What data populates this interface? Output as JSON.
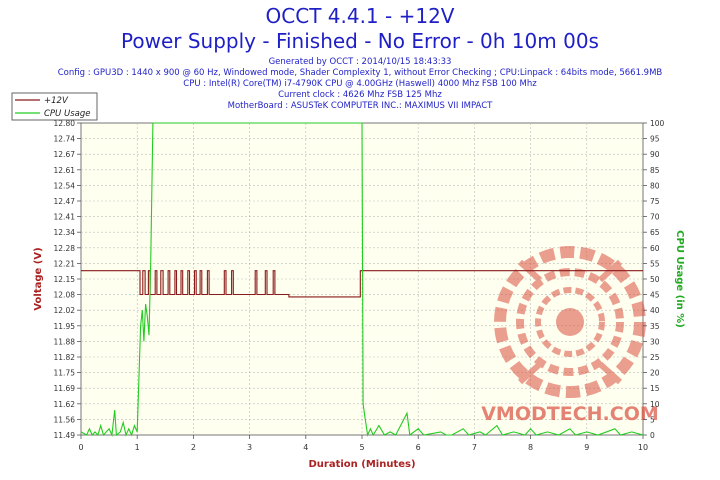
{
  "header": {
    "title": "OCCT 4.4.1 - +12V",
    "subtitle": "Power Supply - Finished - No Error - 0h 10m 00s",
    "info_lines": [
      "Generated by OCCT : 2014/10/15 18:43:33",
      "Config : GPU3D : 1440 x 900 @ 60 Hz, Windowed mode, Shader Complexity 1, without Error Checking ; CPU:Linpack : 64bits mode, 5661.9MB",
      "CPU : Intel(R) Core(TM) i7-4790K CPU @ 4.00GHz (Haswell) 4000 Mhz FSB 100 Mhz",
      "Current clock : 4626 Mhz FSB 125 Mhz",
      "MotherBoard : ASUSTeK COMPUTER INC.: MAXIMUS VII IMPACT"
    ]
  },
  "watermark": "VMODTECH.COM",
  "chart_data": {
    "type": "line",
    "xlabel": "Duration (Minutes)",
    "ylabel_left": "Voltage (V)",
    "ylabel_right": "CPU Usage (in %)",
    "xlim": [
      0,
      10
    ],
    "ylim_left": [
      11.49,
      12.8
    ],
    "ylim_right": [
      0,
      100
    ],
    "x_ticks": [
      "0",
      "1",
      "2",
      "3",
      "4",
      "5",
      "6",
      "7",
      "8",
      "9",
      "10"
    ],
    "y_ticks_left": [
      "11.49",
      "11.56",
      "11.62",
      "11.69",
      "11.75",
      "11.82",
      "11.88",
      "11.95",
      "12.02",
      "12.08",
      "12.15",
      "12.21",
      "12.28",
      "12.34",
      "12.41",
      "12.47",
      "12.54",
      "12.61",
      "12.67",
      "12.74",
      "12.80"
    ],
    "y_ticks_right": [
      "0",
      "5",
      "10",
      "15",
      "20",
      "25",
      "30",
      "35",
      "40",
      "45",
      "50",
      "55",
      "60",
      "65",
      "70",
      "75",
      "80",
      "85",
      "90",
      "95",
      "100"
    ],
    "grid": true,
    "legend_position": "top-left",
    "colors": {
      "voltage": "#8b1a1a",
      "cpu": "#22cc22",
      "axis_label": "#aa2222",
      "right_label": "#22aa22",
      "title": "#1f1fc6",
      "plot_bg": "#fffff0"
    },
    "series": [
      {
        "name": "+12V",
        "axis": "left",
        "points": [
          [
            0,
            12.18
          ],
          [
            1.05,
            12.18
          ],
          [
            1.05,
            12.08
          ],
          [
            1.1,
            12.08
          ],
          [
            1.1,
            12.18
          ],
          [
            1.14,
            12.18
          ],
          [
            1.14,
            12.08
          ],
          [
            1.2,
            12.08
          ],
          [
            1.2,
            12.18
          ],
          [
            1.23,
            12.18
          ],
          [
            1.23,
            12.08
          ],
          [
            1.32,
            12.08
          ],
          [
            1.32,
            12.18
          ],
          [
            1.35,
            12.18
          ],
          [
            1.35,
            12.08
          ],
          [
            1.42,
            12.08
          ],
          [
            1.42,
            12.18
          ],
          [
            1.46,
            12.18
          ],
          [
            1.46,
            12.08
          ],
          [
            1.55,
            12.08
          ],
          [
            1.55,
            12.18
          ],
          [
            1.58,
            12.18
          ],
          [
            1.58,
            12.08
          ],
          [
            1.67,
            12.08
          ],
          [
            1.67,
            12.18
          ],
          [
            1.7,
            12.18
          ],
          [
            1.7,
            12.08
          ],
          [
            1.78,
            12.08
          ],
          [
            1.78,
            12.18
          ],
          [
            1.81,
            12.18
          ],
          [
            1.81,
            12.08
          ],
          [
            1.9,
            12.08
          ],
          [
            1.9,
            12.18
          ],
          [
            1.93,
            12.18
          ],
          [
            1.93,
            12.08
          ],
          [
            2.02,
            12.08
          ],
          [
            2.02,
            12.18
          ],
          [
            2.05,
            12.18
          ],
          [
            2.05,
            12.08
          ],
          [
            2.12,
            12.08
          ],
          [
            2.12,
            12.18
          ],
          [
            2.15,
            12.18
          ],
          [
            2.15,
            12.08
          ],
          [
            2.25,
            12.08
          ],
          [
            2.25,
            12.18
          ],
          [
            2.28,
            12.18
          ],
          [
            2.28,
            12.08
          ],
          [
            2.55,
            12.08
          ],
          [
            2.55,
            12.18
          ],
          [
            2.58,
            12.18
          ],
          [
            2.58,
            12.08
          ],
          [
            2.68,
            12.08
          ],
          [
            2.68,
            12.18
          ],
          [
            2.71,
            12.18
          ],
          [
            2.71,
            12.08
          ],
          [
            3.1,
            12.08
          ],
          [
            3.1,
            12.18
          ],
          [
            3.13,
            12.18
          ],
          [
            3.13,
            12.08
          ],
          [
            3.28,
            12.08
          ],
          [
            3.28,
            12.18
          ],
          [
            3.31,
            12.18
          ],
          [
            3.31,
            12.08
          ],
          [
            3.42,
            12.08
          ],
          [
            3.42,
            12.18
          ],
          [
            3.45,
            12.18
          ],
          [
            3.45,
            12.08
          ],
          [
            3.7,
            12.08
          ],
          [
            3.7,
            12.07
          ],
          [
            4.97,
            12.07
          ],
          [
            4.97,
            12.18
          ],
          [
            10,
            12.18
          ]
        ]
      },
      {
        "name": "CPU Usage",
        "axis": "right",
        "points": [
          [
            0,
            1
          ],
          [
            0.1,
            0
          ],
          [
            0.15,
            2
          ],
          [
            0.2,
            0
          ],
          [
            0.25,
            1
          ],
          [
            0.3,
            0
          ],
          [
            0.35,
            3
          ],
          [
            0.4,
            0
          ],
          [
            0.45,
            1
          ],
          [
            0.5,
            2
          ],
          [
            0.55,
            0
          ],
          [
            0.6,
            8
          ],
          [
            0.63,
            0
          ],
          [
            0.7,
            1
          ],
          [
            0.75,
            4
          ],
          [
            0.8,
            0
          ],
          [
            0.85,
            2
          ],
          [
            0.9,
            0
          ],
          [
            0.95,
            3
          ],
          [
            1.0,
            1
          ],
          [
            1.03,
            18
          ],
          [
            1.06,
            35
          ],
          [
            1.09,
            40
          ],
          [
            1.12,
            30
          ],
          [
            1.15,
            42
          ],
          [
            1.18,
            38
          ],
          [
            1.21,
            32
          ],
          [
            1.24,
            55
          ],
          [
            1.28,
            100
          ],
          [
            5.0,
            100
          ],
          [
            5.02,
            10
          ],
          [
            5.05,
            6
          ],
          [
            5.1,
            0
          ],
          [
            5.15,
            2
          ],
          [
            5.2,
            0
          ],
          [
            5.3,
            3
          ],
          [
            5.4,
            0
          ],
          [
            5.5,
            1
          ],
          [
            5.6,
            0
          ],
          [
            5.8,
            7
          ],
          [
            5.85,
            0
          ],
          [
            6.0,
            2
          ],
          [
            6.1,
            0
          ],
          [
            6.4,
            1
          ],
          [
            6.5,
            0
          ],
          [
            6.6,
            0
          ],
          [
            6.8,
            2
          ],
          [
            6.9,
            0
          ],
          [
            7.1,
            1
          ],
          [
            7.2,
            0
          ],
          [
            7.4,
            3
          ],
          [
            7.5,
            0
          ],
          [
            7.7,
            1
          ],
          [
            7.9,
            0
          ],
          [
            8.0,
            2
          ],
          [
            8.1,
            0
          ],
          [
            8.3,
            1
          ],
          [
            8.5,
            0
          ],
          [
            8.7,
            2
          ],
          [
            8.8,
            0
          ],
          [
            9.0,
            1
          ],
          [
            9.2,
            0
          ],
          [
            9.5,
            2
          ],
          [
            9.6,
            0
          ],
          [
            9.8,
            1
          ],
          [
            10,
            0
          ]
        ]
      }
    ]
  }
}
